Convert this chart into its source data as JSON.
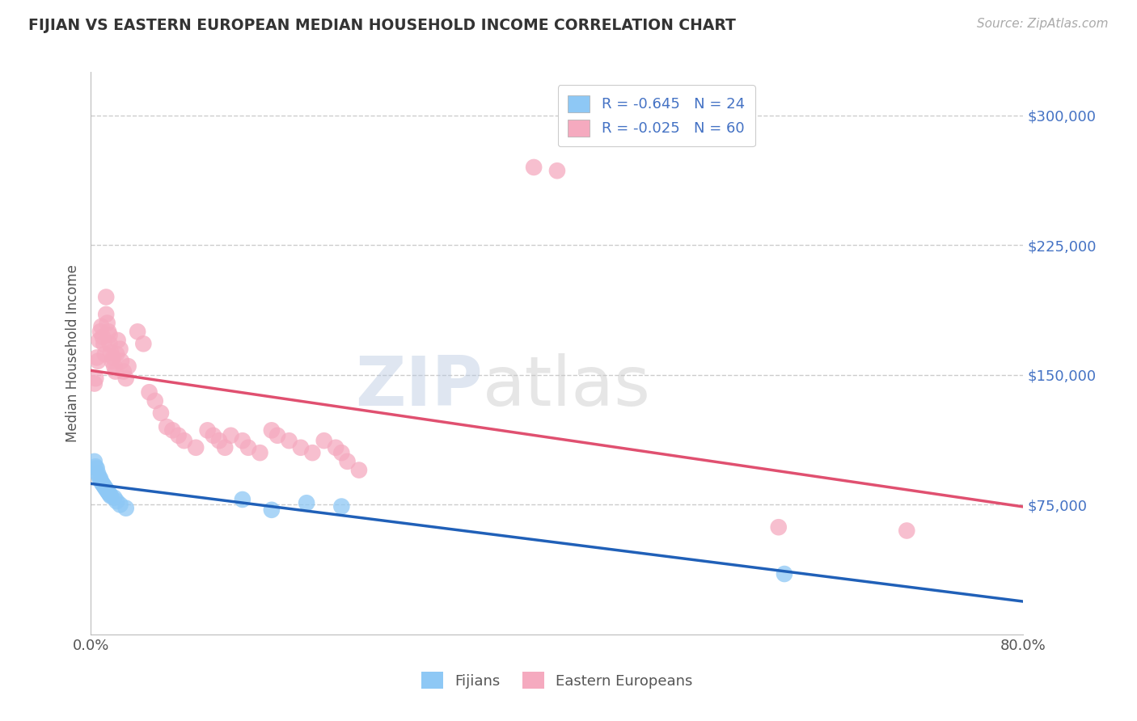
{
  "title": "FIJIAN VS EASTERN EUROPEAN MEDIAN HOUSEHOLD INCOME CORRELATION CHART",
  "source": "Source: ZipAtlas.com",
  "ylabel": "Median Household Income",
  "xlim": [
    0.0,
    0.8
  ],
  "ylim": [
    0,
    325000
  ],
  "background_color": "#ffffff",
  "fijian_color": "#8ec8f5",
  "eastern_color": "#f5aabf",
  "fijian_line_color": "#2060b8",
  "eastern_line_color": "#e05070",
  "grid_color": "#cccccc",
  "legend_blue_label": "R = -0.645   N = 24",
  "legend_pink_label": "R = -0.025   N = 60",
  "legend_fijians": "Fijians",
  "legend_eastern": "Eastern Europeans",
  "fijian_x": [
    0.003,
    0.004,
    0.005,
    0.006,
    0.007,
    0.008,
    0.009,
    0.01,
    0.011,
    0.012,
    0.013,
    0.014,
    0.015,
    0.016,
    0.017,
    0.02,
    0.022,
    0.025,
    0.03,
    0.13,
    0.155,
    0.185,
    0.215,
    0.595
  ],
  "fijian_y": [
    100000,
    97000,
    96000,
    93000,
    91000,
    90000,
    88000,
    87000,
    86000,
    85000,
    84000,
    83000,
    82000,
    81000,
    80000,
    79000,
    77000,
    75000,
    73000,
    78000,
    72000,
    76000,
    74000,
    35000
  ],
  "eastern_x": [
    0.003,
    0.004,
    0.005,
    0.006,
    0.007,
    0.008,
    0.009,
    0.01,
    0.011,
    0.012,
    0.013,
    0.013,
    0.014,
    0.015,
    0.016,
    0.016,
    0.017,
    0.018,
    0.019,
    0.02,
    0.021,
    0.022,
    0.023,
    0.025,
    0.026,
    0.028,
    0.03,
    0.032,
    0.04,
    0.045,
    0.05,
    0.055,
    0.06,
    0.065,
    0.07,
    0.075,
    0.08,
    0.09,
    0.1,
    0.105,
    0.11,
    0.115,
    0.12,
    0.13,
    0.135,
    0.145,
    0.155,
    0.16,
    0.17,
    0.18,
    0.19,
    0.2,
    0.21,
    0.215,
    0.22,
    0.23,
    0.38,
    0.4,
    0.59,
    0.7
  ],
  "eastern_y": [
    145000,
    148000,
    160000,
    158000,
    170000,
    175000,
    178000,
    172000,
    168000,
    162000,
    195000,
    185000,
    180000,
    175000,
    168000,
    173000,
    163000,
    158000,
    160000,
    155000,
    152000,
    162000,
    170000,
    165000,
    158000,
    152000,
    148000,
    155000,
    175000,
    168000,
    140000,
    135000,
    128000,
    120000,
    118000,
    115000,
    112000,
    108000,
    118000,
    115000,
    112000,
    108000,
    115000,
    112000,
    108000,
    105000,
    118000,
    115000,
    112000,
    108000,
    105000,
    112000,
    108000,
    105000,
    100000,
    95000,
    270000,
    268000,
    62000,
    60000
  ]
}
